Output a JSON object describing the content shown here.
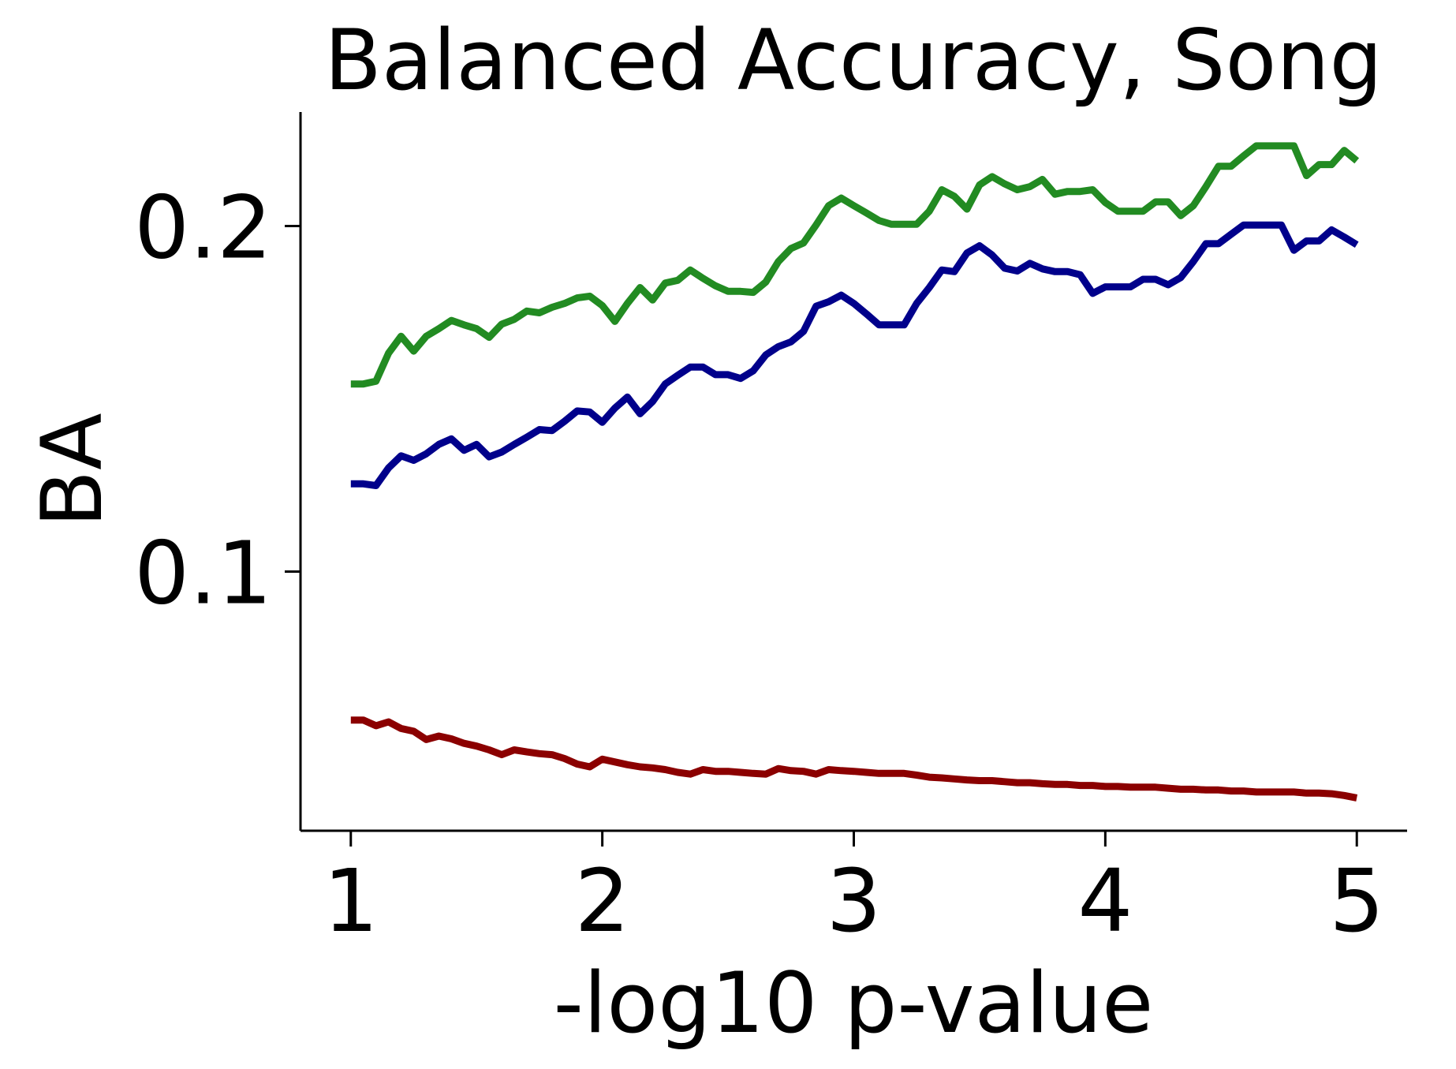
{
  "chart_data": {
    "type": "line",
    "title": "Balanced Accuracy, Song",
    "xlabel": "-log10 p-value",
    "ylabel": "BA",
    "x": [
      1.0,
      1.05,
      1.1,
      1.15,
      1.2,
      1.25,
      1.3,
      1.35,
      1.4,
      1.45,
      1.5,
      1.55,
      1.6,
      1.65,
      1.7,
      1.75,
      1.8,
      1.85,
      1.9,
      1.95,
      2.0,
      2.05,
      2.1,
      2.15,
      2.2,
      2.25,
      2.3,
      2.35,
      2.4,
      2.45,
      2.5,
      2.55,
      2.6,
      2.65,
      2.7,
      2.75,
      2.8,
      2.85,
      2.9,
      2.95,
      3.0,
      3.05,
      3.1,
      3.15,
      3.2,
      3.25,
      3.3,
      3.35,
      3.4,
      3.45,
      3.5,
      3.55,
      3.6,
      3.65,
      3.7,
      3.75,
      3.8,
      3.85,
      3.9,
      3.95,
      4.0,
      4.05,
      4.1,
      4.15,
      4.2,
      4.25,
      4.3,
      4.35,
      4.4,
      4.45,
      4.5,
      4.55,
      4.6,
      4.65,
      4.7,
      4.75,
      4.8,
      4.85,
      4.9,
      4.95,
      5.0
    ],
    "series": [
      {
        "color": "#228b22",
        "values": [
          0.1543,
          0.1543,
          0.1551,
          0.1632,
          0.1681,
          0.1638,
          0.1681,
          0.1703,
          0.1727,
          0.1714,
          0.1703,
          0.1678,
          0.1716,
          0.173,
          0.1754,
          0.1749,
          0.1765,
          0.1776,
          0.1792,
          0.1797,
          0.177,
          0.1724,
          0.1776,
          0.1822,
          0.1786,
          0.1835,
          0.1843,
          0.1873,
          0.1849,
          0.1827,
          0.1811,
          0.1811,
          0.1808,
          0.1838,
          0.1897,
          0.1935,
          0.1951,
          0.2003,
          0.2059,
          0.2081,
          0.2059,
          0.2038,
          0.2016,
          0.2005,
          0.2005,
          0.2005,
          0.2043,
          0.2105,
          0.2086,
          0.2049,
          0.2119,
          0.2143,
          0.2122,
          0.2105,
          0.2114,
          0.2135,
          0.2092,
          0.21,
          0.21,
          0.2105,
          0.2068,
          0.2043,
          0.2043,
          0.2043,
          0.207,
          0.207,
          0.203,
          0.2059,
          0.2114,
          0.2173,
          0.2173,
          0.2203,
          0.2232,
          0.2232,
          0.2232,
          0.2232,
          0.2146,
          0.2178,
          0.2178,
          0.2219,
          0.2189
        ]
      },
      {
        "color": "#00008b",
        "values": [
          0.1254,
          0.1254,
          0.1249,
          0.13,
          0.1335,
          0.1322,
          0.1341,
          0.1368,
          0.1384,
          0.1351,
          0.1368,
          0.1332,
          0.1346,
          0.1368,
          0.1389,
          0.1411,
          0.1408,
          0.1435,
          0.1465,
          0.1462,
          0.1432,
          0.1473,
          0.1505,
          0.1457,
          0.1492,
          0.1543,
          0.1568,
          0.1592,
          0.1592,
          0.157,
          0.157,
          0.1559,
          0.1581,
          0.1627,
          0.1651,
          0.1665,
          0.1695,
          0.1768,
          0.1781,
          0.18,
          0.1776,
          0.1746,
          0.1714,
          0.1714,
          0.1714,
          0.1776,
          0.1822,
          0.1873,
          0.1868,
          0.1922,
          0.1943,
          0.1916,
          0.1878,
          0.187,
          0.1892,
          0.1876,
          0.1868,
          0.1868,
          0.1859,
          0.1805,
          0.1824,
          0.1824,
          0.1824,
          0.1846,
          0.1846,
          0.183,
          0.1851,
          0.1897,
          0.1949,
          0.1949,
          0.1976,
          0.2003,
          0.2003,
          0.2003,
          0.2003,
          0.193,
          0.1957,
          0.1957,
          0.1989,
          0.1968,
          0.1946
        ]
      },
      {
        "color": "#8b0000",
        "values": [
          0.057,
          0.057,
          0.0554,
          0.0565,
          0.0546,
          0.0538,
          0.0514,
          0.0524,
          0.0516,
          0.0503,
          0.0495,
          0.0484,
          0.047,
          0.0484,
          0.0478,
          0.0473,
          0.047,
          0.0459,
          0.0443,
          0.0435,
          0.0457,
          0.0449,
          0.0441,
          0.0435,
          0.0432,
          0.0427,
          0.0419,
          0.0414,
          0.0427,
          0.0422,
          0.0422,
          0.0419,
          0.0416,
          0.0414,
          0.043,
          0.0424,
          0.0422,
          0.0414,
          0.0427,
          0.0424,
          0.0422,
          0.0419,
          0.0416,
          0.0416,
          0.0416,
          0.0411,
          0.0405,
          0.0403,
          0.04,
          0.0397,
          0.0395,
          0.0395,
          0.0392,
          0.0389,
          0.0389,
          0.0386,
          0.0384,
          0.0384,
          0.0381,
          0.0381,
          0.0378,
          0.0378,
          0.0376,
          0.0376,
          0.0376,
          0.0373,
          0.037,
          0.037,
          0.0368,
          0.0368,
          0.0365,
          0.0365,
          0.0362,
          0.0362,
          0.0362,
          0.0362,
          0.0359,
          0.0359,
          0.0357,
          0.0352,
          0.0345
        ]
      }
    ],
    "xlim": [
      0.8,
      5.2
    ],
    "xticks": [
      1,
      2,
      3,
      4,
      5
    ],
    "ylim": [
      0.025,
      0.233
    ],
    "yticks": [
      0.1,
      0.2
    ]
  }
}
